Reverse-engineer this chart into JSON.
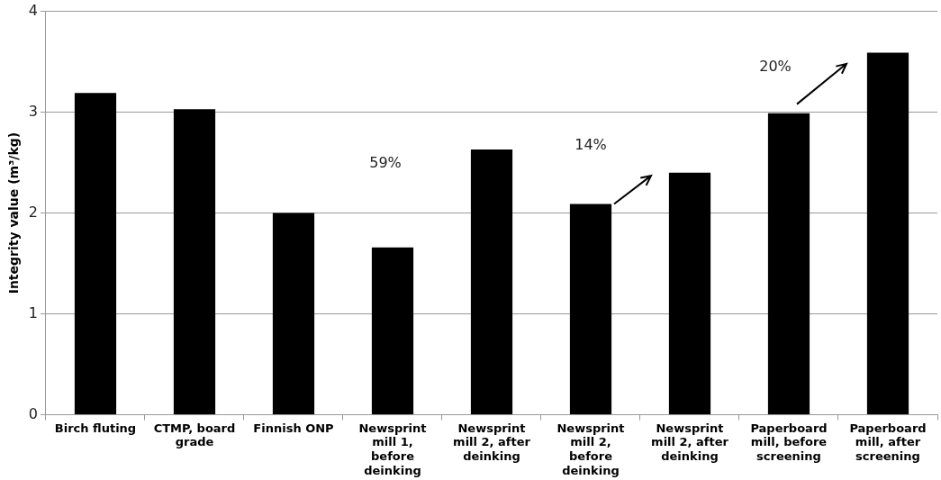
{
  "chart_data": {
    "type": "bar",
    "ylabel": "Integrity value (m³/kg)",
    "categories": [
      "Birch fluting",
      "CTMP, board grade",
      "Finnish ONP",
      "Newsprint mill 1, before deinking",
      "Newsprint mill 2, after deinking",
      "Newsprint mill 2, before deinking",
      "Newsprint mill 2, after deinking",
      "Paperboard mill, before screening",
      "Paperboard mill, after screening"
    ],
    "values": [
      3.19,
      3.03,
      2.0,
      1.66,
      2.63,
      2.09,
      2.4,
      2.99,
      3.59
    ],
    "color": "#000000",
    "ylim": [
      0,
      4
    ],
    "yticks": [
      0,
      1,
      2,
      3,
      4
    ],
    "grid": "y",
    "legend": false,
    "annotations": [
      "59%",
      "14%",
      "20%"
    ]
  }
}
